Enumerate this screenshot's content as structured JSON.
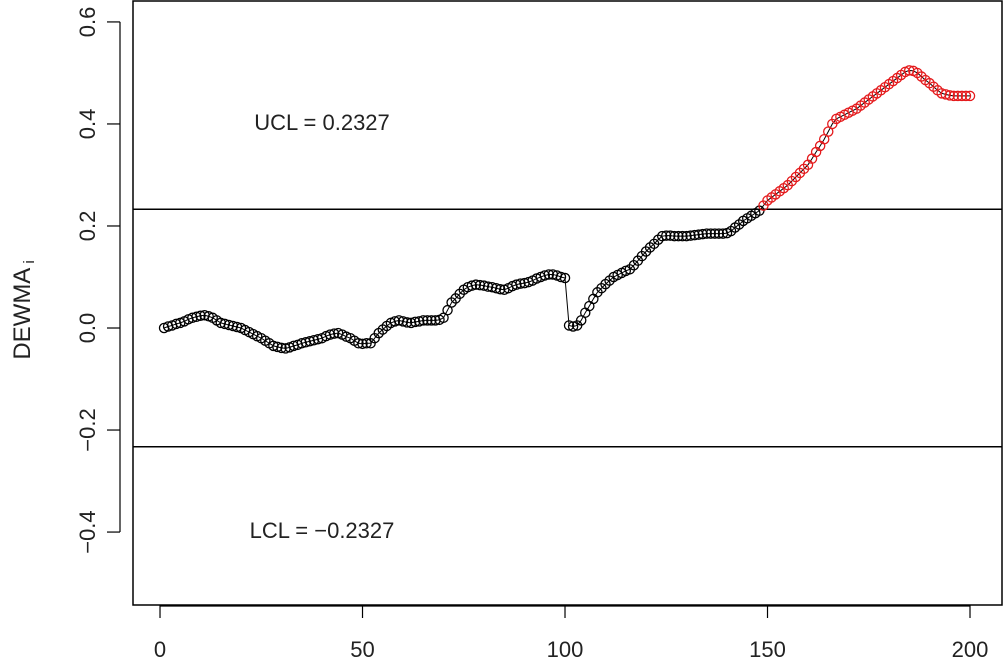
{
  "chart_data": {
    "type": "scatter",
    "y_label": "DEWMA",
    "y_label_sub": "i",
    "annotations": [
      {
        "text": "UCL = 0.2327",
        "x": 40,
        "y": 0.4
      },
      {
        "text": "LCL = −0.2327",
        "x": 40,
        "y": -0.4
      }
    ],
    "ucl": 0.2327,
    "lcl": -0.2327,
    "xlim": [
      -6.67,
      207.9
    ],
    "ylim": [
      -0.543,
      0.643
    ],
    "xticks": [
      0,
      50,
      100,
      150,
      200
    ],
    "yticks": [
      {
        "value": -0.4,
        "label": "−0.4"
      },
      {
        "value": -0.2,
        "label": "−0.2"
      },
      {
        "value": 0,
        "label": "0.0"
      },
      0.2,
      0.4,
      0.6
    ],
    "color": "#000000",
    "out_color": "#e41a1c",
    "x": [
      1,
      2,
      3,
      4,
      5,
      6,
      7,
      8,
      9,
      10,
      11,
      12,
      13,
      14,
      15,
      16,
      17,
      18,
      19,
      20,
      21,
      22,
      23,
      24,
      25,
      26,
      27,
      28,
      29,
      30,
      31,
      32,
      33,
      34,
      35,
      36,
      37,
      38,
      39,
      40,
      41,
      42,
      43,
      44,
      45,
      46,
      47,
      48,
      49,
      50,
      51,
      52,
      53,
      54,
      55,
      56,
      57,
      58,
      59,
      60,
      61,
      62,
      63,
      64,
      65,
      66,
      67,
      68,
      69,
      70,
      71,
      72,
      73,
      74,
      75,
      76,
      77,
      78,
      79,
      80,
      81,
      82,
      83,
      84,
      85,
      86,
      87,
      88,
      89,
      90,
      91,
      92,
      93,
      94,
      95,
      96,
      97,
      98,
      99,
      100,
      101,
      102,
      103,
      104,
      105,
      106,
      107,
      108,
      109,
      110,
      111,
      112,
      113,
      114,
      115,
      116,
      117,
      118,
      119,
      120,
      121,
      122,
      123,
      124,
      125,
      126,
      127,
      128,
      129,
      130,
      131,
      132,
      133,
      134,
      135,
      136,
      137,
      138,
      139,
      140,
      141,
      142,
      143,
      144,
      145,
      146,
      147,
      148,
      149,
      150,
      151,
      152,
      153,
      154,
      155,
      156,
      157,
      158,
      159,
      160,
      161,
      162,
      163,
      164,
      165,
      166,
      167,
      168,
      169,
      170,
      171,
      172,
      173,
      174,
      175,
      176,
      177,
      178,
      179,
      180,
      181,
      182,
      183,
      184,
      185,
      186,
      187,
      188,
      189,
      190,
      191,
      192,
      193,
      194,
      195,
      196,
      197,
      198,
      199,
      200
    ],
    "values": [
      0.0,
      0.003,
      0.005,
      0.008,
      0.01,
      0.013,
      0.017,
      0.02,
      0.022,
      0.024,
      0.025,
      0.023,
      0.02,
      0.015,
      0.01,
      0.008,
      0.006,
      0.004,
      0.002,
      0.0,
      -0.004,
      -0.008,
      -0.012,
      -0.016,
      -0.02,
      -0.025,
      -0.03,
      -0.035,
      -0.037,
      -0.039,
      -0.04,
      -0.038,
      -0.035,
      -0.033,
      -0.03,
      -0.028,
      -0.026,
      -0.024,
      -0.022,
      -0.02,
      -0.016,
      -0.013,
      -0.011,
      -0.01,
      -0.013,
      -0.017,
      -0.02,
      -0.025,
      -0.03,
      -0.031,
      -0.03,
      -0.03,
      -0.02,
      -0.01,
      -0.003,
      0.004,
      0.01,
      0.013,
      0.015,
      0.013,
      0.011,
      0.01,
      0.012,
      0.013,
      0.015,
      0.015,
      0.015,
      0.015,
      0.016,
      0.02,
      0.035,
      0.05,
      0.058,
      0.067,
      0.075,
      0.08,
      0.083,
      0.085,
      0.084,
      0.083,
      0.081,
      0.08,
      0.078,
      0.076,
      0.075,
      0.078,
      0.082,
      0.085,
      0.087,
      0.088,
      0.09,
      0.093,
      0.097,
      0.1,
      0.103,
      0.105,
      0.105,
      0.103,
      0.1,
      0.098,
      0.005,
      0.003,
      0.005,
      0.015,
      0.03,
      0.043,
      0.057,
      0.07,
      0.078,
      0.086,
      0.093,
      0.1,
      0.104,
      0.108,
      0.112,
      0.115,
      0.123,
      0.132,
      0.141,
      0.15,
      0.158,
      0.165,
      0.173,
      0.18,
      0.181,
      0.181,
      0.18,
      0.18,
      0.18,
      0.18,
      0.181,
      0.182,
      0.183,
      0.184,
      0.185,
      0.185,
      0.185,
      0.185,
      0.185,
      0.186,
      0.19,
      0.197,
      0.203,
      0.21,
      0.215,
      0.22,
      0.225,
      0.23,
      0.24,
      0.25,
      0.256,
      0.262,
      0.268,
      0.274,
      0.28,
      0.288,
      0.296,
      0.304,
      0.312,
      0.32,
      0.332,
      0.345,
      0.357,
      0.37,
      0.385,
      0.4,
      0.41,
      0.414,
      0.418,
      0.422,
      0.426,
      0.43,
      0.436,
      0.442,
      0.448,
      0.454,
      0.46,
      0.466,
      0.472,
      0.478,
      0.484,
      0.49,
      0.496,
      0.502,
      0.505,
      0.504,
      0.5,
      0.493,
      0.486,
      0.48,
      0.473,
      0.466,
      0.46,
      0.458,
      0.456,
      0.455,
      0.455,
      0.455,
      0.455,
      0.455
    ]
  }
}
